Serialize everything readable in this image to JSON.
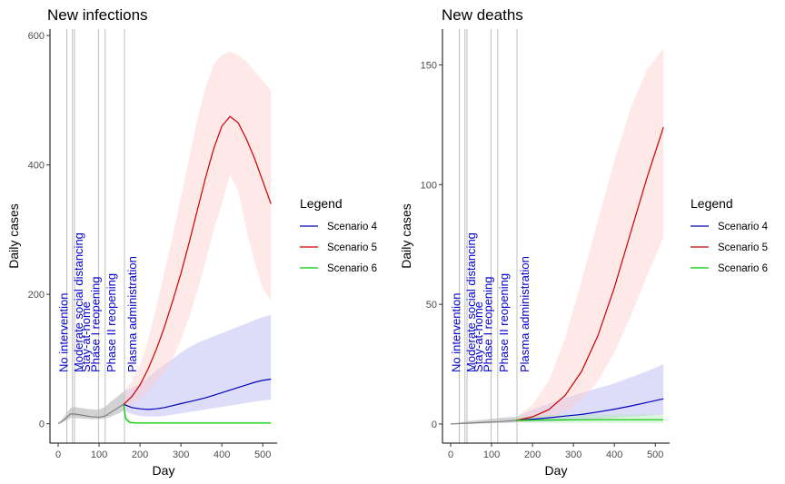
{
  "chart_data": [
    {
      "type": "line",
      "title": "New infections",
      "xlabel": "Day",
      "ylabel": "Daily cases",
      "xlim": [
        -20,
        535
      ],
      "ylim": [
        -30,
        610
      ],
      "xticks": [
        0,
        100,
        200,
        300,
        400,
        500
      ],
      "yticks": [
        0,
        200,
        400,
        600
      ],
      "grid": false,
      "legend_position": "right",
      "event_lines": [
        {
          "day": 21,
          "label": "No intervention"
        },
        {
          "day": 35,
          "label": "Moderate social distancing"
        },
        {
          "day": 40,
          "label": "Stay-at-home"
        },
        {
          "day": 99,
          "label": "Phase I reopening"
        },
        {
          "day": 115,
          "label": "Phase II reopening"
        },
        {
          "day": 162,
          "label": "Plasma administration"
        }
      ],
      "baseline": {
        "color": "#808080",
        "x": [
          0,
          10,
          20,
          30,
          40,
          60,
          80,
          100,
          115,
          130,
          145,
          160
        ],
        "y": [
          0,
          4,
          9,
          15,
          15,
          13,
          11,
          10,
          12,
          18,
          24,
          30
        ],
        "band_low": [
          0,
          2,
          5,
          9,
          9,
          8,
          7,
          7,
          8,
          11,
          15,
          20
        ],
        "band_high": [
          0,
          7,
          15,
          24,
          26,
          24,
          22,
          22,
          26,
          35,
          42,
          50
        ]
      },
      "series": [
        {
          "name": "Scenario 4",
          "color": "#0000bb",
          "band_color": "#b3b3f5",
          "x": [
            160,
            180,
            200,
            220,
            240,
            260,
            280,
            300,
            320,
            340,
            360,
            380,
            400,
            420,
            440,
            460,
            480,
            500,
            520
          ],
          "y": [
            30,
            25,
            23,
            22,
            23,
            25,
            28,
            31,
            34,
            37,
            40,
            44,
            48,
            52,
            56,
            60,
            64,
            67,
            69
          ],
          "band_low": [
            20,
            15,
            12,
            11,
            11,
            12,
            14,
            16,
            18,
            20,
            22,
            24,
            26,
            28,
            30,
            32,
            34,
            36,
            37
          ],
          "band_high": [
            50,
            55,
            62,
            72,
            82,
            92,
            100,
            110,
            118,
            125,
            130,
            135,
            140,
            145,
            150,
            155,
            160,
            165,
            168
          ]
        },
        {
          "name": "Scenario 5",
          "color": "#cc0000",
          "band_color": "#ffcccc",
          "x": [
            160,
            180,
            200,
            220,
            240,
            260,
            280,
            300,
            320,
            340,
            360,
            380,
            400,
            420,
            440,
            460,
            480,
            500,
            520
          ],
          "y": [
            30,
            42,
            60,
            85,
            115,
            150,
            190,
            232,
            280,
            330,
            380,
            425,
            460,
            475,
            465,
            440,
            410,
            375,
            340
          ],
          "band_low": [
            22,
            30,
            38,
            50,
            65,
            80,
            100,
            130,
            165,
            205,
            250,
            300,
            340,
            385,
            360,
            300,
            250,
            210,
            190
          ],
          "band_high": [
            50,
            65,
            90,
            130,
            180,
            235,
            290,
            350,
            410,
            470,
            520,
            555,
            570,
            575,
            570,
            560,
            545,
            530,
            515
          ]
        },
        {
          "name": "Scenario 6",
          "color": "#00cc00",
          "band_color": "#b3e6b3",
          "x": [
            160,
            165,
            175,
            190,
            520
          ],
          "y": [
            30,
            8,
            2,
            1,
            1
          ],
          "band_low": [
            20,
            4,
            0,
            0,
            0
          ],
          "band_high": [
            50,
            14,
            5,
            3,
            3
          ]
        }
      ],
      "legend_title": "Legend"
    },
    {
      "type": "line",
      "title": "New deaths",
      "xlabel": "Day",
      "ylabel": "Daily cases",
      "xlim": [
        -20,
        535
      ],
      "ylim": [
        -8,
        165
      ],
      "xticks": [
        0,
        100,
        200,
        300,
        400,
        500
      ],
      "yticks": [
        0,
        50,
        100,
        150
      ],
      "grid": false,
      "legend_position": "right",
      "event_lines": [
        {
          "day": 21,
          "label": "No intervention"
        },
        {
          "day": 35,
          "label": "Moderate social distancing"
        },
        {
          "day": 40,
          "label": "Stay-at-home"
        },
        {
          "day": 99,
          "label": "Phase I reopening"
        },
        {
          "day": 115,
          "label": "Phase II reopening"
        },
        {
          "day": 162,
          "label": "Plasma administration"
        }
      ],
      "baseline": {
        "color": "#808080",
        "x": [
          0,
          40,
          80,
          120,
          160
        ],
        "y": [
          0,
          0.3,
          0.7,
          1.0,
          1.5
        ],
        "band_low": [
          0,
          0,
          0.2,
          0.4,
          0.6
        ],
        "band_high": [
          0,
          1.2,
          1.8,
          2.5,
          3.0
        ]
      },
      "series": [
        {
          "name": "Scenario 4",
          "color": "#0000bb",
          "band_color": "#b3b3f5",
          "x": [
            160,
            200,
            240,
            280,
            320,
            360,
            400,
            440,
            480,
            520
          ],
          "y": [
            1.5,
            2.0,
            2.6,
            3.3,
            4.0,
            5.0,
            6.2,
            7.5,
            9.0,
            10.5
          ],
          "band_low": [
            0.6,
            0.8,
            1.0,
            1.3,
            1.6,
            2.0,
            2.5,
            3.0,
            3.5,
            4.0
          ],
          "band_high": [
            3.0,
            6.0,
            8.5,
            11,
            13,
            15,
            17,
            19.5,
            22,
            25
          ]
        },
        {
          "name": "Scenario 5",
          "color": "#cc0000",
          "band_color": "#ffcccc",
          "x": [
            160,
            200,
            240,
            280,
            320,
            360,
            400,
            440,
            480,
            520
          ],
          "y": [
            1.5,
            3.0,
            6.0,
            12,
            22,
            37,
            57,
            80,
            103,
            124
          ],
          "band_low": [
            0.6,
            1.2,
            2.5,
            5.0,
            10,
            18,
            30,
            45,
            62,
            78
          ],
          "band_high": [
            3.0,
            8.0,
            18,
            36,
            60,
            85,
            110,
            132,
            148,
            157
          ]
        },
        {
          "name": "Scenario 6",
          "color": "#00cc00",
          "band_color": "#b3e6b3",
          "x": [
            160,
            200,
            280,
            360,
            440,
            520
          ],
          "y": [
            1.5,
            1.6,
            1.7,
            1.8,
            1.8,
            1.8
          ],
          "band_low": [
            0.6,
            0.5,
            0.4,
            0.4,
            0.4,
            0.4
          ],
          "band_high": [
            3.0,
            3.5,
            4.0,
            4.0,
            4.0,
            4.0
          ]
        }
      ],
      "legend_title": "Legend"
    }
  ]
}
